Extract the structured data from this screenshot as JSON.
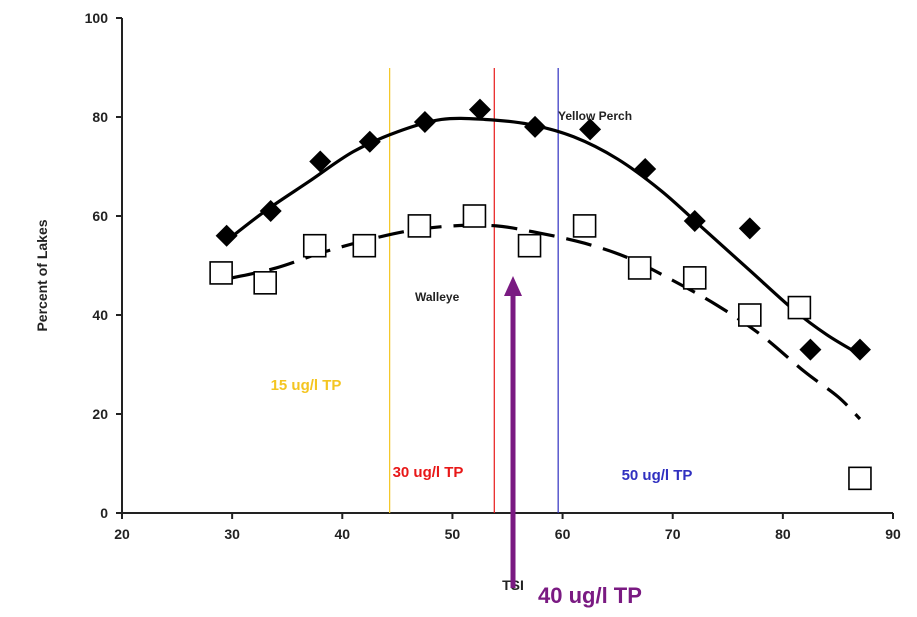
{
  "chart_data": {
    "type": "scatter",
    "title": "",
    "xlabel": "TSI",
    "ylabel": "Percent of Lakes",
    "xlim": [
      20,
      90
    ],
    "ylim": [
      0,
      100
    ],
    "xticks": [
      "20",
      "30",
      "40",
      "50",
      "60",
      "70",
      "80",
      "90"
    ],
    "yticks": [
      "0",
      "20",
      "40",
      "60",
      "80",
      "100"
    ],
    "grid": false,
    "series": [
      {
        "name": "Yellow Perch",
        "marker": "filled-diamond",
        "color": "#000000",
        "points": [
          [
            29.5,
            56
          ],
          [
            33.5,
            61
          ],
          [
            38,
            71
          ],
          [
            42.5,
            75
          ],
          [
            47.5,
            79
          ],
          [
            52.5,
            81.5
          ],
          [
            57.5,
            78
          ],
          [
            62.5,
            77.5
          ],
          [
            67.5,
            69.5
          ],
          [
            72,
            59
          ],
          [
            77,
            57.5
          ],
          [
            82.5,
            33
          ],
          [
            87,
            33
          ]
        ],
        "curve_style": "solid",
        "curve": [
          [
            29.5,
            55
          ],
          [
            33,
            61
          ],
          [
            37,
            67
          ],
          [
            41,
            73
          ],
          [
            45,
            77
          ],
          [
            49,
            79.5
          ],
          [
            53,
            79.5
          ],
          [
            57,
            78.5
          ],
          [
            61,
            76
          ],
          [
            65,
            71.5
          ],
          [
            69,
            65
          ],
          [
            73,
            57
          ],
          [
            77,
            49
          ],
          [
            81,
            41
          ],
          [
            84,
            36
          ],
          [
            87,
            32
          ]
        ]
      },
      {
        "name": "Walleye",
        "marker": "open-square",
        "color": "#000000",
        "points": [
          [
            29,
            48.5
          ],
          [
            33,
            46.5
          ],
          [
            37.5,
            54
          ],
          [
            42,
            54
          ],
          [
            47,
            58
          ],
          [
            52,
            60
          ],
          [
            57,
            54
          ],
          [
            62,
            58
          ],
          [
            67,
            49.5
          ],
          [
            72,
            47.5
          ],
          [
            77,
            40
          ],
          [
            81.5,
            41.5
          ],
          [
            87,
            7
          ]
        ],
        "curve_style": "dashed",
        "curve": [
          [
            30,
            47.5
          ],
          [
            34,
            49.5
          ],
          [
            38,
            52.5
          ],
          [
            42,
            55
          ],
          [
            46,
            57
          ],
          [
            50,
            58
          ],
          [
            54,
            58
          ],
          [
            58,
            56.5
          ],
          [
            62,
            54.5
          ],
          [
            66,
            51.5
          ],
          [
            70,
            47
          ],
          [
            74,
            42
          ],
          [
            78,
            36
          ],
          [
            82,
            28.5
          ],
          [
            85,
            23.5
          ],
          [
            87,
            19
          ]
        ]
      }
    ],
    "reference_lines": [
      {
        "x": 44.3,
        "label": "15 ug/l TP",
        "color": "#f4c521"
      },
      {
        "x": 53.8,
        "label": "30 ug/l TP",
        "color": "#e81818"
      },
      {
        "x": 59.6,
        "label": "50 ug/l TP",
        "color": "#3030c0"
      }
    ],
    "arrow": {
      "x": 55.5,
      "label": "40 ug/l TP",
      "color": "#7a1a82"
    }
  }
}
